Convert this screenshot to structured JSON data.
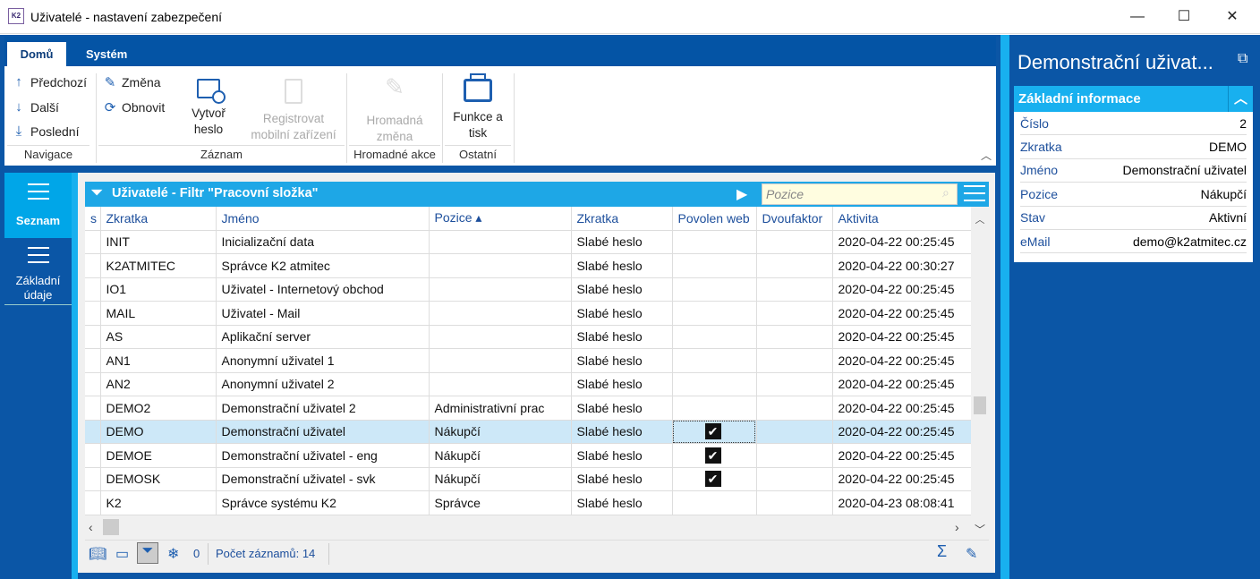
{
  "window": {
    "title": "Uživatelé - nastavení zabezpečení",
    "app_icon": "K2",
    "minimize": "—",
    "maximize": "☐",
    "close": "✕"
  },
  "ribbon": {
    "tabs": [
      "Domů",
      "Systém"
    ],
    "nav": {
      "prev": "Předchozí",
      "next": "Další",
      "last": "Poslední",
      "group": "Navigace"
    },
    "record": {
      "change": "Změna",
      "refresh": "Obnovit",
      "create_pw_1": "Vytvoř",
      "create_pw_2": "heslo",
      "register_1": "Registrovat",
      "register_2": "mobilní zařízení",
      "group": "Záznam"
    },
    "bulk": {
      "change_1": "Hromadná",
      "change_2": "změna",
      "group": "Hromadné akce"
    },
    "other": {
      "print_1": "Funkce a",
      "print_2": "tisk",
      "group": "Ostatní"
    }
  },
  "sidebar": {
    "items": [
      {
        "label": "Seznam"
      },
      {
        "label_1": "Základní",
        "label_2": "údaje"
      }
    ]
  },
  "grid": {
    "title": "Uživatelé - Filtr \"Pracovní složka\"",
    "search_placeholder": "Pozice",
    "columns": [
      "s",
      "Zkratka",
      "Jméno",
      "Pozice ▴",
      "Zkratka",
      "Povolen web",
      "Dvoufaktor",
      "Aktivita"
    ],
    "rows": [
      {
        "code": "INIT",
        "name": "Inicializační data",
        "position": "",
        "pw": "Slabé heslo",
        "web": false,
        "activity": "2020-04-22 00:25:45"
      },
      {
        "code": "K2ATMITEC",
        "name": "Správce K2 atmitec",
        "position": "",
        "pw": "Slabé heslo",
        "web": false,
        "activity": "2020-04-22 00:30:27"
      },
      {
        "code": "IO1",
        "name": "Uživatel - Internetový obchod",
        "position": "",
        "pw": "Slabé heslo",
        "web": false,
        "activity": "2020-04-22 00:25:45"
      },
      {
        "code": "MAIL",
        "name": "Uživatel - Mail",
        "position": "",
        "pw": "Slabé heslo",
        "web": false,
        "activity": "2020-04-22 00:25:45"
      },
      {
        "code": "AS",
        "name": "Aplikační server",
        "position": "",
        "pw": "Slabé heslo",
        "web": false,
        "activity": "2020-04-22 00:25:45"
      },
      {
        "code": "AN1",
        "name": "Anonymní uživatel 1",
        "position": "",
        "pw": "Slabé heslo",
        "web": false,
        "activity": "2020-04-22 00:25:45"
      },
      {
        "code": "AN2",
        "name": "Anonymní uživatel 2",
        "position": "",
        "pw": "Slabé heslo",
        "web": false,
        "activity": "2020-04-22 00:25:45"
      },
      {
        "code": "DEMO2",
        "name": "Demonstrační uživatel 2",
        "position": "Administrativní prac",
        "pw": "Slabé heslo",
        "web": false,
        "activity": "2020-04-22 00:25:45"
      },
      {
        "code": "DEMO",
        "name": "Demonstrační uživatel",
        "position": "Nákupčí",
        "pw": "Slabé heslo",
        "web": true,
        "activity": "2020-04-22 00:25:45",
        "selected": true
      },
      {
        "code": "DEMOE",
        "name": "Demonstrační uživatel - eng",
        "position": "Nákupčí",
        "pw": "Slabé heslo",
        "web": true,
        "activity": "2020-04-22 00:25:45"
      },
      {
        "code": "DEMOSK",
        "name": "Demonstrační uživatel - svk",
        "position": "Nákupčí",
        "pw": "Slabé heslo",
        "web": true,
        "activity": "2020-04-22 00:25:45"
      },
      {
        "code": "K2",
        "name": "Správce systému K2",
        "position": "Správce",
        "pw": "Slabé heslo",
        "web": false,
        "activity": "2020-04-23 08:08:41"
      }
    ],
    "footer": {
      "filter_count": "0",
      "record_count": "Počet záznamů: 14"
    }
  },
  "detail": {
    "title": "Demonstrační uživat...",
    "section": "Základní informace",
    "fields": [
      {
        "label": "Číslo",
        "value": "2"
      },
      {
        "label": "Zkratka",
        "value": "DEMO"
      },
      {
        "label": "Jméno",
        "value": "Demonstrační uživatel"
      },
      {
        "label": "Pozice",
        "value": "Nákupčí"
      },
      {
        "label": "Stav",
        "value": "Aktivní"
      },
      {
        "label": "eMail",
        "value": "demo@k2atmitec.cz"
      }
    ]
  },
  "colors": {
    "frame": "#0b56a6",
    "accent": "#1ea7e6",
    "selected_row": "#cde8f8"
  }
}
